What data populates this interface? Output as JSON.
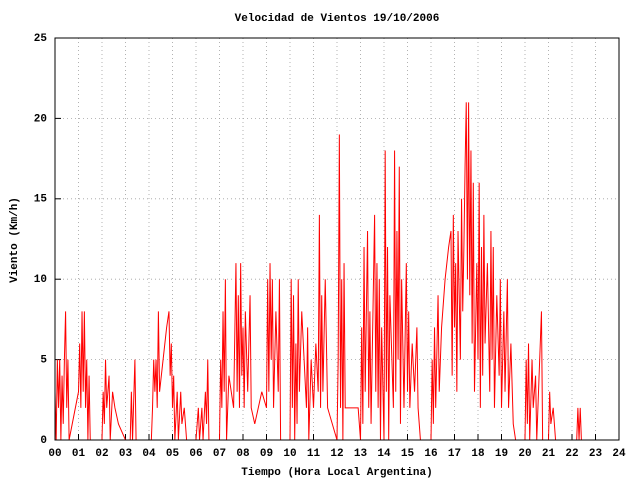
{
  "chart_data": {
    "type": "line",
    "title": "Velocidad de Vientos 19/10/2006",
    "xlabel": "Tiempo (Hora Local Argentina)",
    "ylabel": "Viento (Km/h)",
    "xlim": [
      0,
      24
    ],
    "ylim": [
      0,
      25
    ],
    "xticks": [
      {
        "value": 0,
        "label": "00"
      },
      {
        "value": 1,
        "label": "01"
      },
      {
        "value": 2,
        "label": "02"
      },
      {
        "value": 3,
        "label": "03"
      },
      {
        "value": 4,
        "label": "04"
      },
      {
        "value": 5,
        "label": "05"
      },
      {
        "value": 6,
        "label": "06"
      },
      {
        "value": 7,
        "label": "07"
      },
      {
        "value": 8,
        "label": "08"
      },
      {
        "value": 9,
        "label": "09"
      },
      10,
      11,
      12,
      13,
      14,
      15,
      16,
      17,
      18,
      19,
      20,
      21,
      22,
      23,
      24
    ],
    "yticks": [
      0,
      5,
      10,
      15,
      20,
      25
    ],
    "grid": true,
    "x": [
      0.0,
      0.05,
      0.1,
      0.15,
      0.2,
      0.25,
      0.3,
      0.35,
      0.4,
      0.45,
      0.5,
      0.55,
      0.6,
      1.0,
      1.05,
      1.1,
      1.15,
      1.2,
      1.25,
      1.3,
      1.35,
      1.4,
      1.45,
      1.5,
      1.6,
      2.0,
      2.05,
      2.1,
      2.15,
      2.2,
      2.3,
      2.35,
      2.45,
      2.55,
      2.7,
      3.0,
      3.2,
      3.25,
      3.3,
      3.4,
      3.45,
      3.5,
      4.1,
      4.15,
      4.2,
      4.25,
      4.3,
      4.35,
      4.4,
      4.45,
      4.6,
      4.75,
      4.85,
      4.9,
      4.95,
      5.0,
      5.05,
      5.1,
      5.2,
      5.25,
      5.35,
      5.4,
      5.5,
      5.6,
      6.0,
      6.1,
      6.15,
      6.25,
      6.3,
      6.4,
      6.45,
      6.5,
      6.55,
      7.0,
      7.05,
      7.1,
      7.15,
      7.2,
      7.25,
      7.3,
      7.4,
      7.6,
      7.7,
      7.75,
      7.8,
      7.85,
      7.9,
      7.95,
      8.0,
      8.05,
      8.1,
      8.2,
      8.3,
      8.35,
      8.5,
      8.8,
      9.0,
      9.05,
      9.1,
      9.15,
      9.2,
      9.25,
      9.3,
      9.4,
      9.5,
      9.55,
      9.6,
      10.0,
      10.05,
      10.1,
      10.15,
      10.2,
      10.25,
      10.3,
      10.35,
      10.4,
      10.5,
      10.6,
      10.7,
      10.75,
      10.8,
      10.9,
      11.0,
      11.1,
      11.2,
      11.25,
      11.3,
      11.35,
      11.4,
      11.5,
      11.6,
      12.0,
      12.05,
      12.1,
      12.15,
      12.2,
      12.25,
      12.3,
      12.35,
      12.9,
      13.0,
      13.05,
      13.1,
      13.15,
      13.2,
      13.3,
      13.35,
      13.4,
      13.45,
      13.6,
      13.65,
      13.7,
      13.75,
      13.8,
      13.85,
      13.9,
      14.0,
      14.05,
      14.1,
      14.15,
      14.2,
      14.25,
      14.4,
      14.45,
      14.5,
      14.55,
      14.6,
      14.65,
      14.7,
      14.75,
      14.85,
      14.95,
      15.0,
      15.05,
      15.1,
      15.2,
      15.3,
      15.4,
      15.45,
      15.55,
      16.0,
      16.05,
      16.1,
      16.15,
      16.2,
      16.3,
      16.35,
      16.45,
      16.6,
      16.75,
      16.85,
      16.9,
      16.95,
      17.0,
      17.05,
      17.1,
      17.15,
      17.25,
      17.3,
      17.35,
      17.4,
      17.45,
      17.5,
      17.55,
      17.6,
      17.65,
      17.7,
      17.75,
      17.8,
      17.85,
      17.95,
      18.0,
      18.05,
      18.1,
      18.15,
      18.2,
      18.25,
      18.3,
      18.4,
      18.5,
      18.55,
      18.6,
      18.65,
      18.7,
      18.8,
      18.9,
      18.95,
      19.0,
      19.1,
      19.15,
      19.25,
      19.3,
      19.4,
      19.5,
      19.6,
      20.0,
      20.05,
      20.1,
      20.15,
      20.2,
      20.3,
      20.35,
      20.45,
      20.5,
      20.7,
      20.75,
      21.0,
      21.05,
      21.1,
      21.2,
      21.3,
      22.2,
      22.25,
      22.3,
      22.35,
      22.4
    ],
    "series": [
      {
        "color": "#ff0000",
        "values": [
          3,
          0,
          5,
          2,
          5,
          0,
          4,
          1,
          5,
          8,
          2,
          5,
          0,
          3,
          6,
          2,
          8,
          3,
          8,
          2,
          5,
          0,
          4,
          0,
          0,
          0,
          3,
          1,
          5,
          2,
          4,
          0,
          3,
          2,
          1,
          0,
          0,
          3,
          0,
          5,
          0,
          0,
          0,
          2,
          5,
          3,
          5,
          2,
          8,
          3,
          5,
          7,
          8,
          4,
          6,
          2,
          4,
          0,
          3,
          0,
          3,
          1,
          2,
          0,
          0,
          2,
          0,
          2,
          0,
          3,
          1,
          5,
          0,
          0,
          5,
          2,
          8,
          3,
          10,
          0,
          4,
          2,
          11,
          3,
          9,
          2,
          11,
          4,
          7,
          2,
          8,
          3,
          9,
          2,
          1,
          3,
          2,
          10,
          3,
          11,
          5,
          10,
          2,
          8,
          3,
          10,
          0,
          0,
          10,
          2,
          9,
          0,
          6,
          1,
          10,
          3,
          8,
          5,
          2,
          7,
          0,
          5,
          2,
          6,
          3,
          14,
          2,
          9,
          3,
          10,
          2,
          0,
          5,
          19,
          2,
          10,
          0,
          11,
          2,
          2,
          0,
          7,
          1,
          12,
          3,
          13,
          2,
          8,
          1,
          14,
          3,
          11,
          2,
          10,
          0,
          7,
          0,
          18,
          3,
          12,
          0,
          9,
          2,
          18,
          3,
          13,
          5,
          17,
          1,
          10,
          2,
          11,
          3,
          8,
          2,
          6,
          3,
          7,
          2,
          0,
          0,
          5,
          1,
          7,
          2,
          9,
          3,
          7,
          10,
          12,
          13,
          4,
          14,
          7,
          11,
          3,
          13,
          5,
          15,
          8,
          12,
          17,
          21,
          10,
          21,
          9,
          18,
          6,
          16,
          3,
          11,
          5,
          16,
          2,
          12,
          4,
          14,
          6,
          11,
          3,
          13,
          5,
          12,
          2,
          9,
          4,
          10,
          2,
          8,
          3,
          10,
          2,
          6,
          1,
          0,
          0,
          5,
          1,
          6,
          0,
          5,
          2,
          4,
          0,
          8,
          0,
          0,
          3,
          1,
          2,
          0,
          0,
          2,
          0,
          2,
          0
        ]
      }
    ]
  }
}
